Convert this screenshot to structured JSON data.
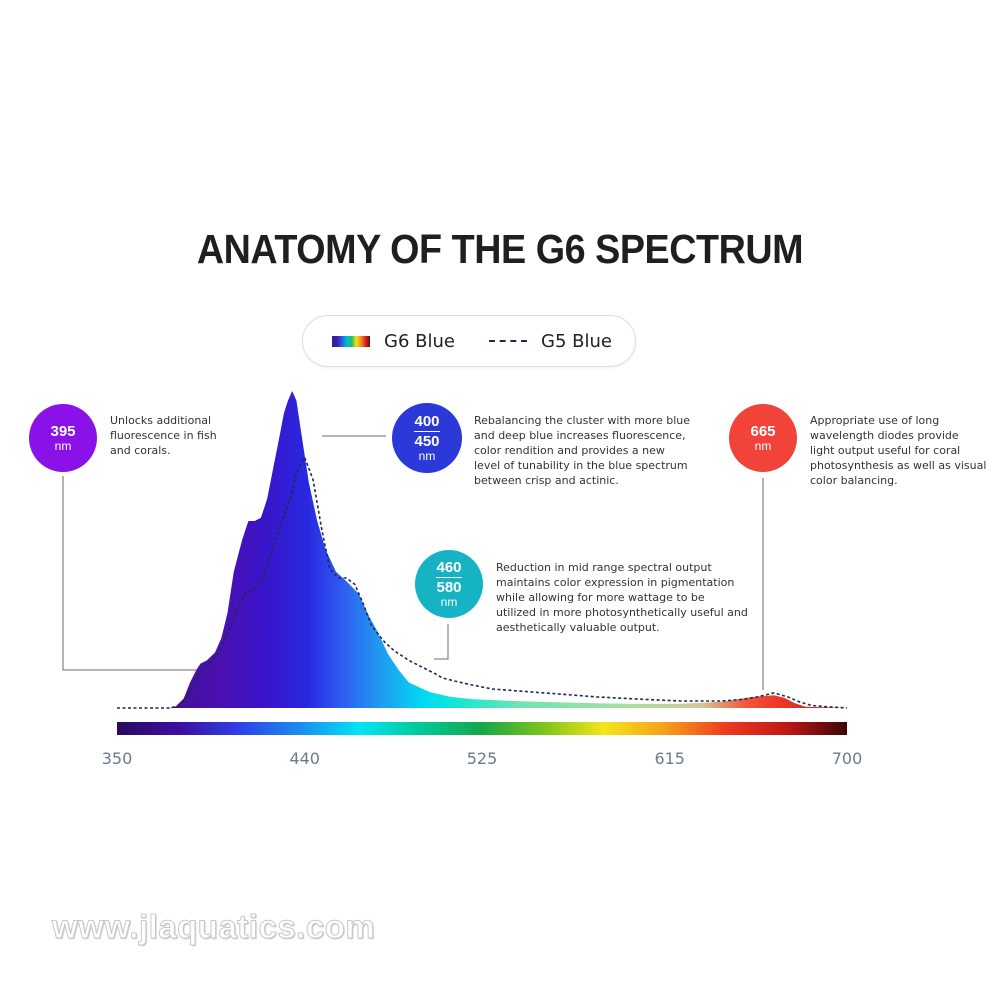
{
  "title": "ANATOMY OF THE G6 SPECTRUM",
  "legend": {
    "g6_label": "G6 Blue",
    "g5_label": "G5 Blue"
  },
  "annotations": [
    {
      "id": "395",
      "badge_lines": [
        "395"
      ],
      "unit": "nm",
      "color": "#8a12e8",
      "text_lines": [
        "Unlocks additional",
        "fluorescence in fish",
        "and corals."
      ]
    },
    {
      "id": "400-450",
      "badge_lines": [
        "400",
        "450"
      ],
      "unit": "nm",
      "color": "#2a39d8",
      "text_lines": [
        "Rebalancing the cluster with more blue",
        "and deep blue increases fluorescence,",
        "color rendition and provides a new",
        "level of tunability in the blue spectrum",
        "between crisp and actinic."
      ]
    },
    {
      "id": "665",
      "badge_lines": [
        "665"
      ],
      "unit": "nm",
      "color": "#f2433a",
      "text_lines": [
        "Appropriate use of long",
        "wavelength diodes provide",
        "light output useful for coral",
        "photosynthesis as well as visual",
        "color balancing."
      ]
    },
    {
      "id": "460-580",
      "badge_lines": [
        "460",
        "580"
      ],
      "unit": "nm",
      "color": "#16b3c4",
      "text_lines": [
        "Reduction in mid range spectral output",
        "maintains color expression in pigmentation",
        "while allowing for more wattage to be",
        "utilized in more photosynthetically useful and",
        "aesthetically valuable output."
      ]
    }
  ],
  "chart_data": {
    "type": "area",
    "x_unit": "nm",
    "xlim": [
      350,
      700
    ],
    "ylim": [
      0,
      1
    ],
    "x_ticks": [
      "350",
      "440",
      "525",
      "615",
      "700"
    ],
    "spectrum_bar": [
      "#2a0a5c",
      "#3b0fa0",
      "#2f3fe6",
      "#1a8cf0",
      "#00e5f5",
      "#00c896",
      "#16a64a",
      "#7cc41a",
      "#f3e61a",
      "#f5a11a",
      "#ee3b1f",
      "#c01818",
      "#3c0505"
    ],
    "series": [
      {
        "name": "G6 Blue",
        "x": [
          350,
          375,
          378,
          382,
          385,
          388,
          390,
          393,
          397,
          400,
          403,
          406,
          410,
          413,
          416,
          419,
          422,
          425,
          428,
          430,
          432,
          434,
          436,
          439,
          442,
          446,
          450,
          455,
          460,
          466,
          470,
          475,
          480,
          485,
          490,
          500,
          510,
          520,
          540,
          560,
          580,
          600,
          620,
          640,
          655,
          665,
          670,
          675,
          680,
          700
        ],
        "y": [
          0,
          0,
          0.004,
          0.03,
          0.08,
          0.12,
          0.14,
          0.15,
          0.175,
          0.22,
          0.3,
          0.43,
          0.53,
          0.59,
          0.59,
          0.6,
          0.66,
          0.76,
          0.86,
          0.93,
          0.97,
          1.0,
          0.97,
          0.84,
          0.71,
          0.59,
          0.5,
          0.43,
          0.4,
          0.36,
          0.3,
          0.24,
          0.17,
          0.12,
          0.08,
          0.05,
          0.035,
          0.028,
          0.022,
          0.018,
          0.015,
          0.013,
          0.013,
          0.02,
          0.035,
          0.04,
          0.032,
          0.015,
          0.004,
          0
        ]
      },
      {
        "name": "G5 Blue",
        "x": [
          350,
          375,
          380,
          385,
          390,
          393,
          398,
          402,
          407,
          411,
          415,
          420,
          425,
          429,
          433,
          436,
          438,
          440,
          444,
          448,
          452,
          456,
          460,
          464,
          468,
          472,
          478,
          483,
          490,
          496,
          502,
          506,
          512,
          520,
          530,
          540,
          560,
          580,
          600,
          620,
          640,
          650,
          657,
          662,
          665,
          667,
          672,
          677,
          683,
          690,
          700
        ],
        "y": [
          0,
          0,
          0.007,
          0.05,
          0.11,
          0.13,
          0.17,
          0.22,
          0.3,
          0.36,
          0.37,
          0.41,
          0.51,
          0.59,
          0.66,
          0.74,
          0.77,
          0.79,
          0.72,
          0.57,
          0.44,
          0.41,
          0.41,
          0.39,
          0.33,
          0.26,
          0.21,
          0.18,
          0.15,
          0.13,
          0.11,
          0.095,
          0.085,
          0.073,
          0.06,
          0.055,
          0.045,
          0.035,
          0.028,
          0.022,
          0.022,
          0.027,
          0.035,
          0.043,
          0.048,
          0.044,
          0.034,
          0.02,
          0.008,
          0.004,
          0
        ]
      }
    ]
  },
  "watermark": "www.jlaquatics.com"
}
